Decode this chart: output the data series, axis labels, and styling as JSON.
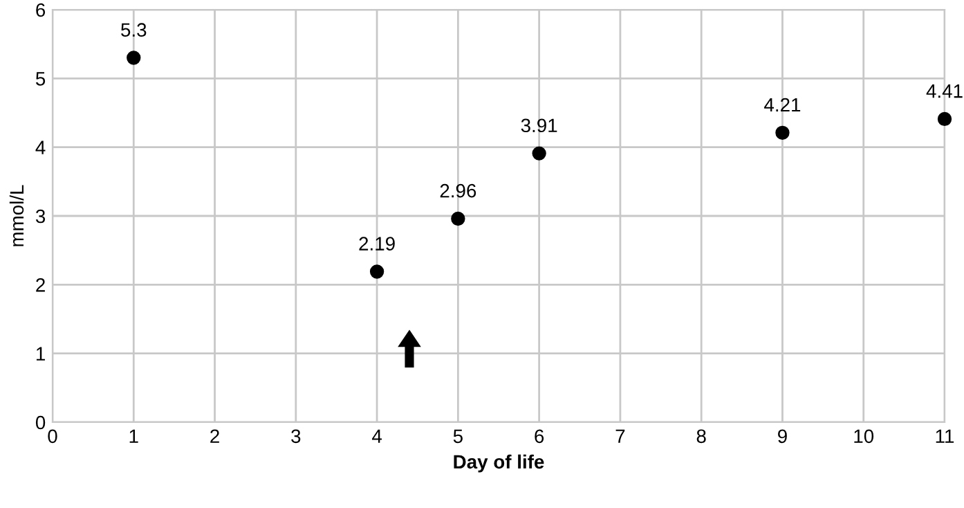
{
  "chart_data": {
    "type": "scatter",
    "xlabel": "Day of life",
    "ylabel": "mmol/L",
    "x": [
      1,
      4,
      5,
      6,
      9,
      11
    ],
    "values": [
      5.3,
      2.19,
      2.96,
      3.91,
      4.21,
      4.41
    ],
    "color": "#000000",
    "marker": "circle",
    "data_labels": true,
    "grid": true,
    "legend": false,
    "xlim": [
      0,
      11
    ],
    "xticks": [
      0,
      1,
      2,
      3,
      4,
      5,
      6,
      7,
      8,
      9,
      10,
      11
    ],
    "ylim": [
      0,
      6
    ],
    "yticks": [
      0,
      1,
      2,
      3,
      4,
      5,
      6
    ]
  }
}
